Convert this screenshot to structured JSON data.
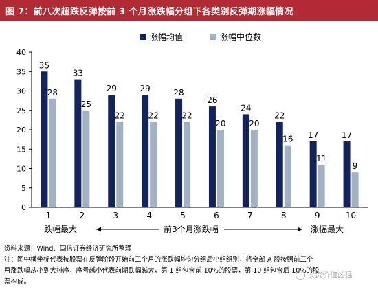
{
  "header": {
    "title": "图 7：前八次超跌反弹按前 3 个月涨跌幅分组下各类别反弹期涨幅情况"
  },
  "chart_data": {
    "type": "bar",
    "categories": [
      "1",
      "2",
      "3",
      "4",
      "5",
      "6",
      "7",
      "8",
      "9",
      "10"
    ],
    "series": [
      {
        "name": "涨幅均值",
        "values": [
          35,
          33,
          29,
          29,
          28,
          26,
          24,
          22,
          17,
          17
        ]
      },
      {
        "name": "涨幅中位数",
        "values": [
          28,
          25,
          22,
          22,
          22,
          20,
          20,
          16,
          11,
          9
        ]
      }
    ],
    "ylim": [
      0,
      40
    ],
    "yticks": [
      0,
      5,
      10,
      15,
      20,
      25,
      30,
      35,
      40
    ],
    "grid": false,
    "legend_position": "top-center",
    "colors": {
      "mean": "#13235c",
      "median": "#a3b1c4",
      "header": "#b22a33"
    },
    "annotations": {
      "left": "跌幅最大",
      "middle": "前3个月涨跌幅",
      "right": "涨幅最大"
    }
  },
  "notes": {
    "source": "资料来源：Wind、国信证券经济研究所整理",
    "line1": "注：图中横坐标代表按股票在反弹阶段开始前三个月的涨跌幅均匀分组后小组组别，将全部 A 股按照前三个",
    "line2": "月涨跌幅从小到大排序，序号越小代表前期跌幅越大，第 1 组包含前 10%的股票，第 10 组包含后 10%的股",
    "line3": "票构成。"
  },
  "watermark": {
    "text": "投资价值凶猛"
  }
}
